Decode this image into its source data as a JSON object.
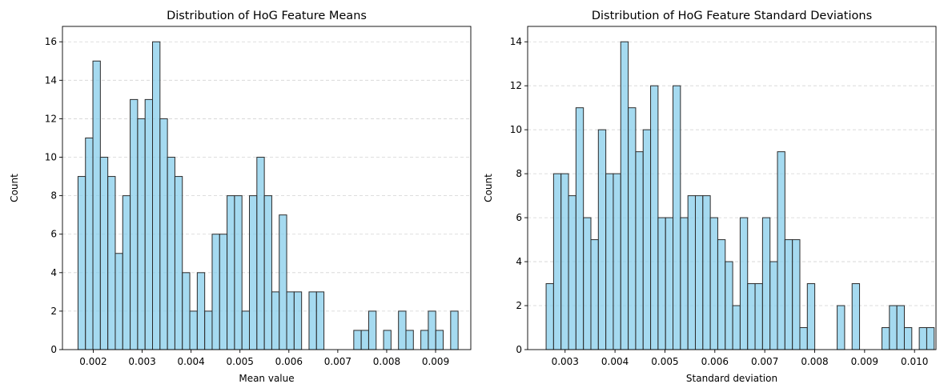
{
  "style": {
    "bar_color": "#87CEEB",
    "bar_edge": "#222222",
    "bar_alpha": 0.75
  },
  "chart_data": [
    {
      "type": "bar",
      "title": "Distribution of HoG Feature Means",
      "xlabel": "Mean value",
      "ylabel": "Count",
      "grid": "y-dashed",
      "xlim": [
        0.00137,
        0.00972
      ],
      "ylim": [
        0,
        16.8
      ],
      "xticks": [
        0.002,
        0.003,
        0.004,
        0.005,
        0.006,
        0.007,
        0.008,
        0.009
      ],
      "xtick_labels": [
        "0.002",
        "0.003",
        "0.004",
        "0.005",
        "0.006",
        "0.007",
        "0.008",
        "0.009"
      ],
      "yticks": [
        0,
        2,
        4,
        6,
        8,
        10,
        12,
        14,
        16
      ],
      "ytick_labels": [
        "0",
        "2",
        "4",
        "6",
        "8",
        "10",
        "12",
        "14",
        "16"
      ],
      "bin_start": 0.001688,
      "bin_width": 0.0001524,
      "values": [
        9,
        11,
        15,
        10,
        9,
        5,
        8,
        13,
        12,
        13,
        16,
        12,
        10,
        9,
        4,
        2,
        4,
        2,
        6,
        6,
        8,
        8,
        2,
        8,
        10,
        8,
        3,
        7,
        3,
        3,
        0,
        3,
        3,
        0,
        0,
        0,
        0,
        1,
        1,
        2,
        0,
        1,
        0,
        2,
        1,
        0,
        1,
        2,
        1,
        0,
        2
      ]
    },
    {
      "type": "bar",
      "title": "Distribution of HoG Feature Standard Deviations",
      "xlabel": "Standard deviation",
      "ylabel": "Count",
      "grid": "y-dashed",
      "xlim": [
        0.00225,
        0.01043
      ],
      "ylim": [
        0,
        14.7
      ],
      "xticks": [
        0.003,
        0.004,
        0.005,
        0.006,
        0.007,
        0.008,
        0.009,
        0.01
      ],
      "xtick_labels": [
        "0.003",
        "0.004",
        "0.005",
        "0.006",
        "0.007",
        "0.008",
        "0.009",
        "0.010"
      ],
      "yticks": [
        0,
        2,
        4,
        6,
        8,
        10,
        12,
        14
      ],
      "ytick_labels": [
        "0",
        "2",
        "4",
        "6",
        "8",
        "10",
        "12",
        "14"
      ],
      "bin_start": 0.00262,
      "bin_width": 0.0001495,
      "values": [
        3,
        8,
        8,
        7,
        11,
        6,
        5,
        10,
        8,
        8,
        14,
        11,
        9,
        10,
        12,
        6,
        6,
        12,
        6,
        7,
        7,
        7,
        6,
        5,
        4,
        2,
        6,
        3,
        3,
        6,
        4,
        9,
        5,
        5,
        1,
        3,
        0,
        0,
        0,
        2,
        0,
        3,
        0,
        0,
        0,
        1,
        2,
        2,
        1,
        0,
        1,
        1
      ]
    }
  ]
}
